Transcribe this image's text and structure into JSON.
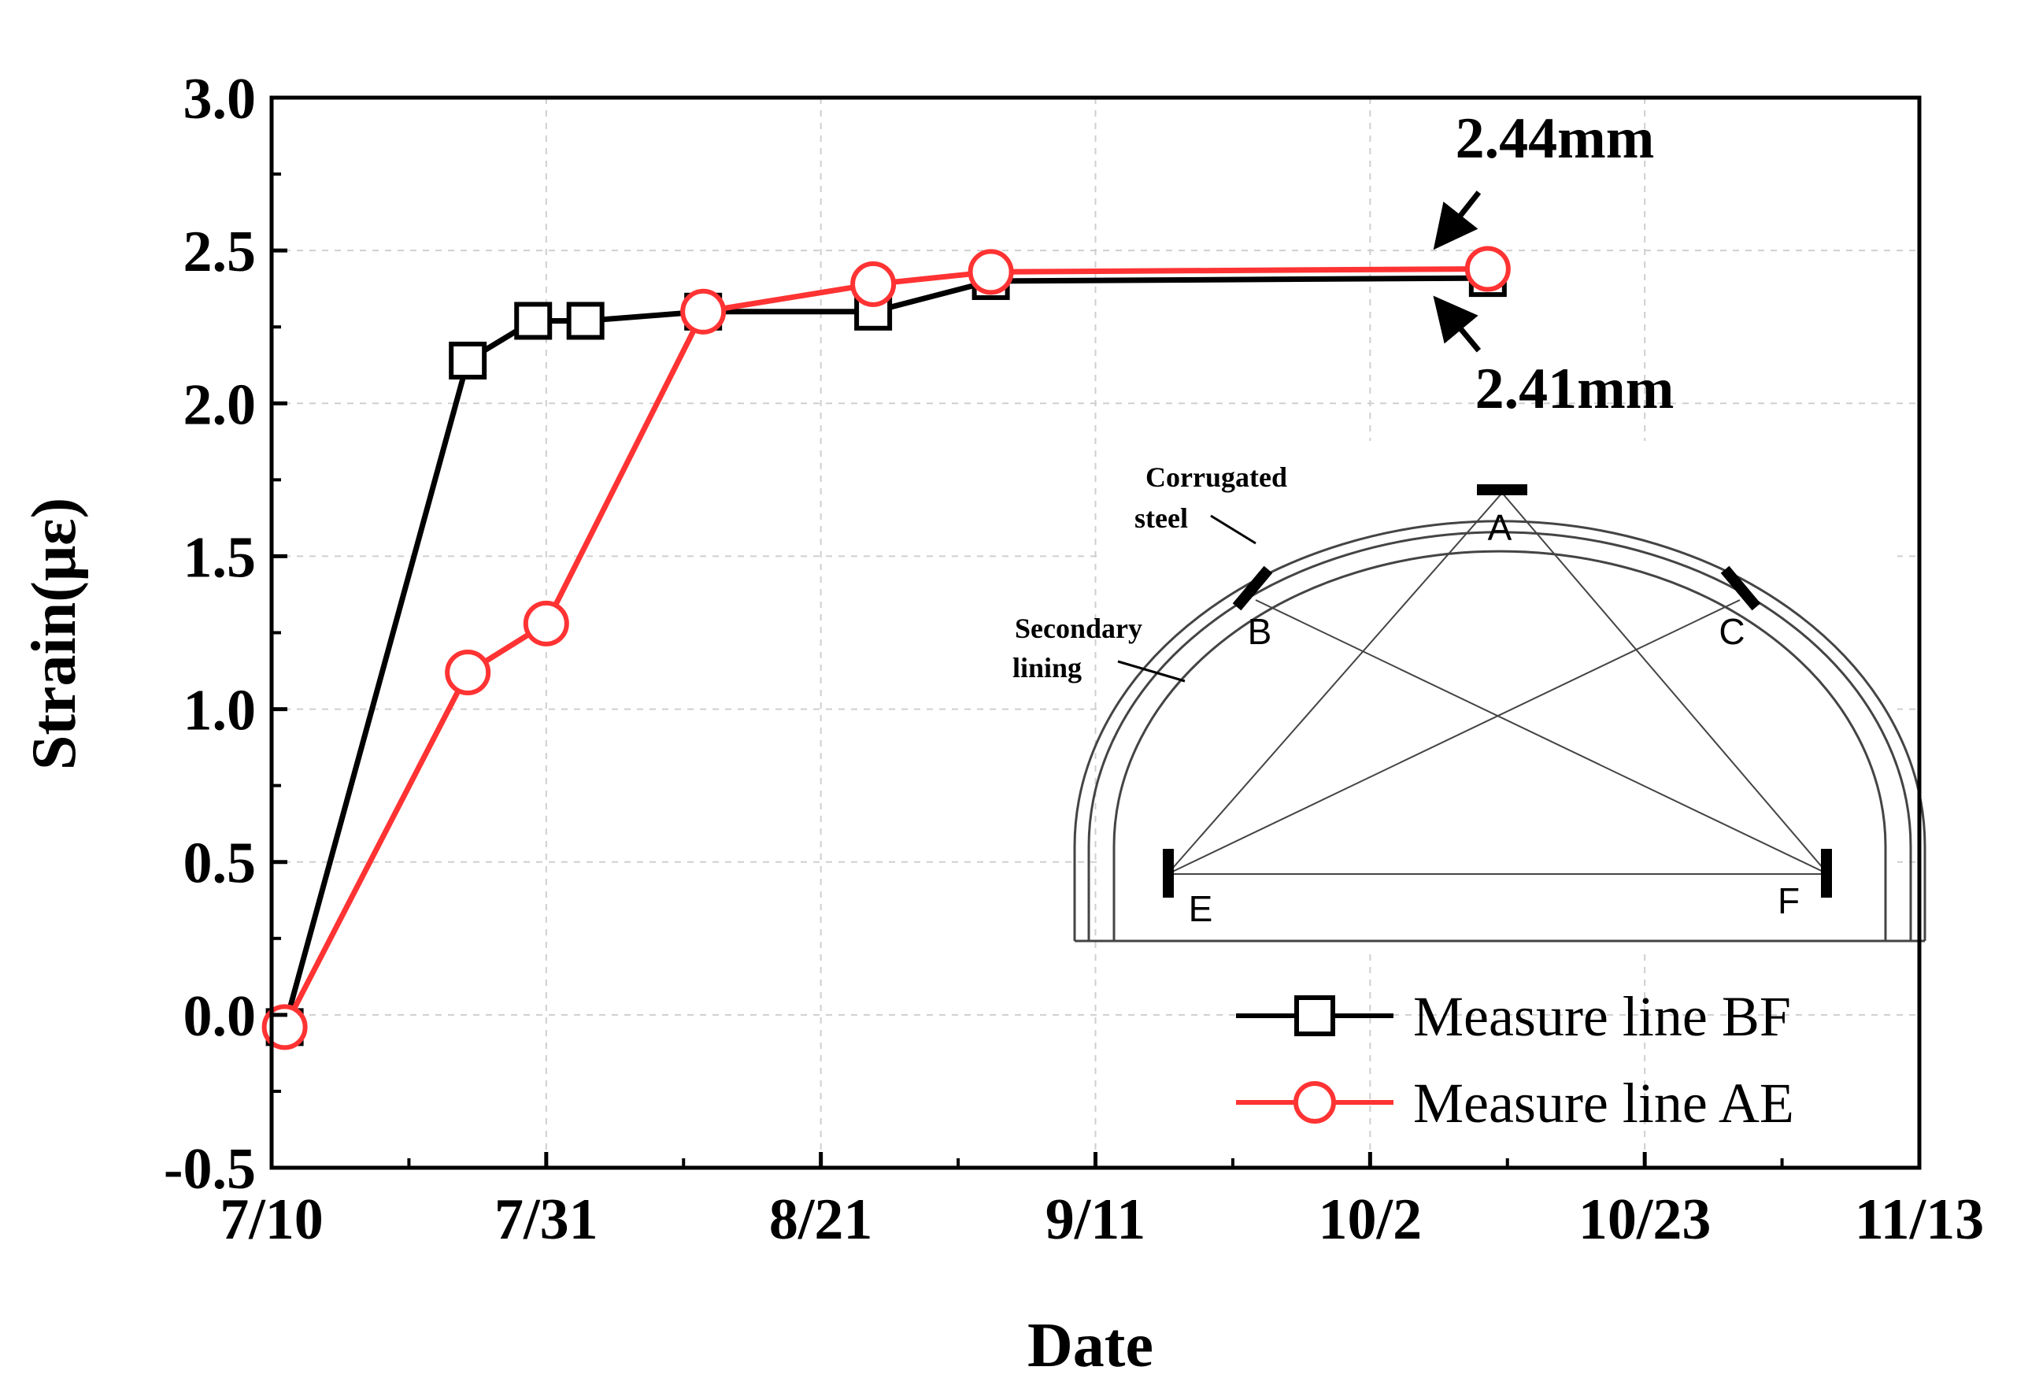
{
  "chart_data": {
    "type": "line",
    "title": "",
    "xlabel": "Date",
    "ylabel": "Strain(με)",
    "x_ticks": [
      "7/10",
      "7/31",
      "8/21",
      "9/11",
      "10/2",
      "10/23",
      "11/13"
    ],
    "x_tick_days": [
      0,
      21,
      42,
      63,
      84,
      105,
      126
    ],
    "xlim": [
      0,
      126
    ],
    "y_ticks": [
      "-0.5",
      "0.0",
      "0.5",
      "1.0",
      "1.5",
      "2.0",
      "2.5",
      "3.0"
    ],
    "ylim": [
      -0.5,
      3.0
    ],
    "grid": true,
    "legend_position": "bottom-right",
    "series": [
      {
        "name": "Measure line BF",
        "color": "#000000",
        "marker": "square",
        "x_days": [
          1,
          15,
          20,
          24,
          33,
          46,
          55,
          93
        ],
        "values": [
          -0.04,
          2.14,
          2.27,
          2.27,
          2.3,
          2.3,
          2.4,
          2.41
        ]
      },
      {
        "name": "Measure line AE",
        "color": "#ff3333",
        "marker": "circle",
        "x_days": [
          1,
          15,
          21,
          33,
          46,
          55,
          93
        ],
        "values": [
          -0.04,
          1.12,
          1.28,
          2.3,
          2.39,
          2.43,
          2.44
        ]
      }
    ],
    "annotations": [
      {
        "text": "2.44mm",
        "target_day": 89,
        "target_value": 2.51,
        "position": "above"
      },
      {
        "text": "2.41mm",
        "target_day": 89,
        "target_value": 2.34,
        "position": "below"
      }
    ],
    "inset": {
      "caption_corrugated_1": "Corrugated",
      "caption_corrugated_2": "steel",
      "caption_secondary_1": "Secondary",
      "caption_secondary_2": "lining",
      "points": [
        "A",
        "B",
        "C",
        "E",
        "F"
      ]
    }
  }
}
